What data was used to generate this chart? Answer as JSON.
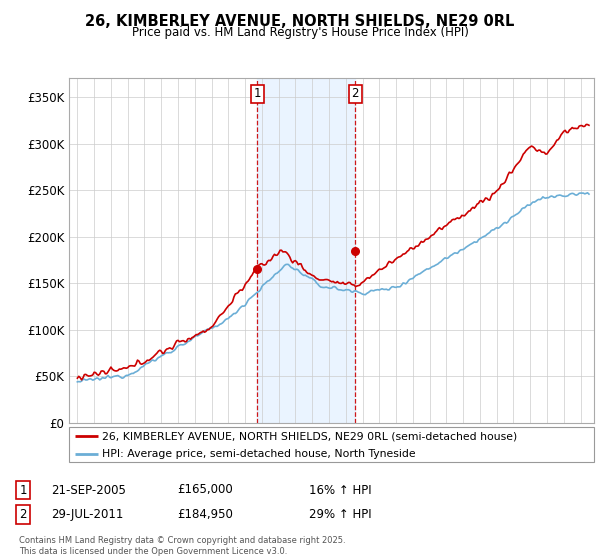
{
  "title": "26, KIMBERLEY AVENUE, NORTH SHIELDS, NE29 0RL",
  "subtitle": "Price paid vs. HM Land Registry's House Price Index (HPI)",
  "ylabel_vals": [
    "£0",
    "£50K",
    "£100K",
    "£150K",
    "£200K",
    "£250K",
    "£300K",
    "£350K"
  ],
  "ylim": [
    0,
    370000
  ],
  "xlim_start": 1994.5,
  "xlim_end": 2025.8,
  "sale1_date": 2005.72,
  "sale1_price": 165000,
  "sale1_label": "1",
  "sale2_date": 2011.57,
  "sale2_price": 184950,
  "sale2_label": "2",
  "hpi_color": "#6baed6",
  "price_color": "#cc0000",
  "shade_color": "#ddeeff",
  "footer": "Contains HM Land Registry data © Crown copyright and database right 2025.\nThis data is licensed under the Open Government Licence v3.0.",
  "legend_line1": "26, KIMBERLEY AVENUE, NORTH SHIELDS, NE29 0RL (semi-detached house)",
  "legend_line2": "HPI: Average price, semi-detached house, North Tyneside",
  "table_row1_num": "1",
  "table_row1_date": "21-SEP-2005",
  "table_row1_price": "£165,000",
  "table_row1_hpi": "16% ↑ HPI",
  "table_row2_num": "2",
  "table_row2_date": "29-JUL-2011",
  "table_row2_price": "£184,950",
  "table_row2_hpi": "29% ↑ HPI"
}
